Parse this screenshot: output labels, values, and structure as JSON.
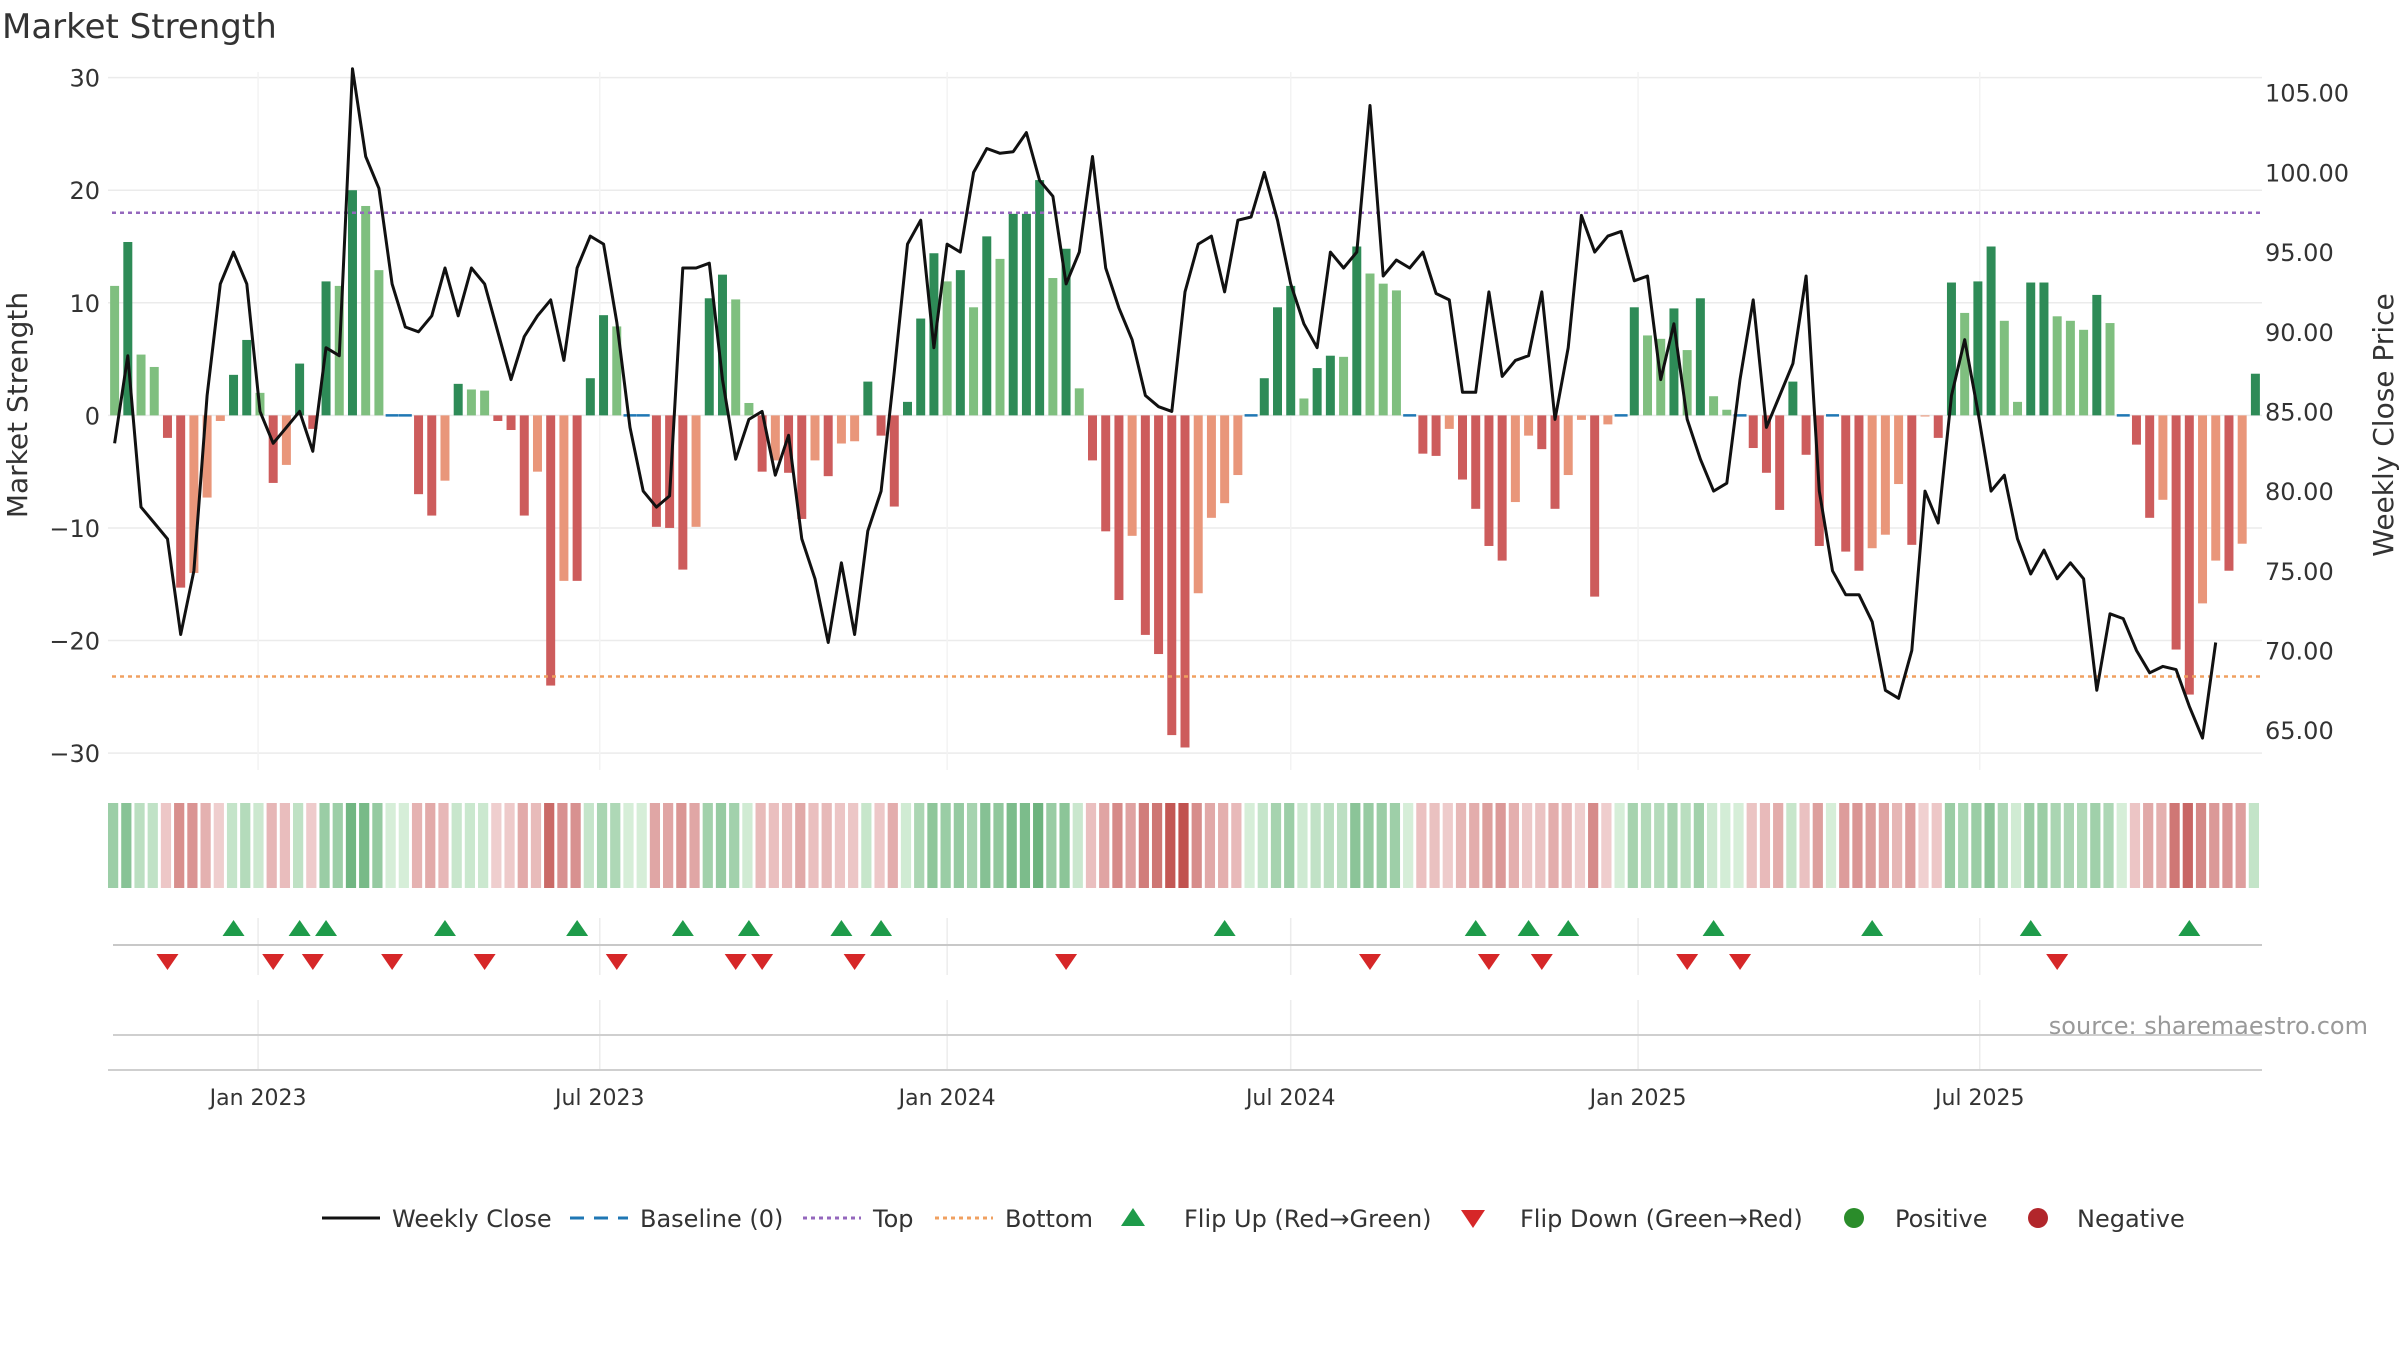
{
  "chart_data": {
    "type": "bar",
    "title": "Market Strength",
    "ylabel": "Market Strength",
    "y2label": "Weekly Close Price",
    "ylim": [
      -31.5,
      30.5
    ],
    "y2lim": [
      62.5,
      106.3
    ],
    "yticks": [
      30,
      20,
      10,
      0,
      -10,
      -20,
      -30
    ],
    "yticklabels": [
      "30",
      "20",
      "10",
      "0",
      "−10",
      "−20",
      "−30"
    ],
    "y2ticks": [
      105,
      100,
      95,
      90,
      85,
      80,
      75,
      70,
      65
    ],
    "y2ticklabels": [
      "105.00",
      "100.00",
      "95.00",
      "90.00",
      "85.00",
      "80.00",
      "75.00",
      "70.00",
      "65.00"
    ],
    "x_start": "2022-10-17",
    "x_step_days": 7,
    "xticks": [
      {
        "date": "2023-01-01",
        "label": "Jan 2023"
      },
      {
        "date": "2023-07-01",
        "label": "Jul 2023"
      },
      {
        "date": "2024-01-01",
        "label": "Jan 2024"
      },
      {
        "date": "2024-07-01",
        "label": "Jul 2024"
      },
      {
        "date": "2025-01-01",
        "label": "Jan 2025"
      },
      {
        "date": "2025-07-01",
        "label": "Jul 2025"
      }
    ],
    "top_line": 18,
    "bottom_line": -23.2,
    "grid": true,
    "series": [
      {
        "name": "Market Strength",
        "values": [
          11.5,
          15.4,
          5.4,
          4.3,
          -2,
          -15.3,
          -14,
          -7.3,
          -0.5,
          3.6,
          6.7,
          2,
          -6,
          -4.4,
          4.6,
          -1.2,
          11.9,
          11.5,
          20,
          18.6,
          12.9,
          0,
          0,
          -7,
          -8.9,
          -5.8,
          2.8,
          2.3,
          2.2,
          -0.5,
          -1.3,
          -8.9,
          -5,
          -24,
          -14.7,
          -14.7,
          3.3,
          8.9,
          7.9,
          0,
          0,
          -9.9,
          -10,
          -13.7,
          -9.9,
          10.4,
          12.5,
          10.3,
          1.1,
          -5,
          -4,
          -5.1,
          -9.2,
          -4,
          -5.4,
          -2.5,
          -2.3,
          3,
          -1.8,
          -8.1,
          1.2,
          8.6,
          14.4,
          11.9,
          12.9,
          9.6,
          15.9,
          13.9,
          17.9,
          17.9,
          20.9,
          12.2,
          14.8,
          2.4,
          -4,
          -10.3,
          -16.4,
          -10.7,
          -19.5,
          -21.2,
          -28.4,
          -29.5,
          -15.8,
          -9.1,
          -7.8,
          -5.3,
          0,
          3.3,
          9.6,
          11.5,
          1.5,
          4.2,
          5.3,
          5.2,
          15,
          12.6,
          11.7,
          11.1,
          0,
          -3.4,
          -3.6,
          -1.2,
          -5.7,
          -8.3,
          -11.6,
          -12.9,
          -7.7,
          -1.8,
          -3,
          -8.3,
          -5.3,
          -0.4,
          -16.1,
          -0.8,
          0,
          9.6,
          7.1,
          6.8,
          9.5,
          5.8,
          10.4,
          1.7,
          0.5,
          0,
          -2.9,
          -5.1,
          -8.4,
          3,
          -3.5,
          -11.6,
          0,
          -12.1,
          -13.8,
          -11.8,
          -10.6,
          -6.1,
          -11.5,
          -0.1,
          -2,
          11.8,
          9.1,
          11.9,
          15,
          8.4,
          1.2,
          11.8,
          11.8,
          8.8,
          8.4,
          7.6,
          10.7,
          8.2,
          0,
          -2.6,
          -9.1,
          -7.5,
          -20.8,
          -24.8,
          -16.7,
          -12.9,
          -13.8,
          -11.4,
          3.7
        ]
      },
      {
        "name": "Weekly Close",
        "values": [
          83,
          88.5,
          79,
          78,
          77,
          71,
          75,
          86,
          93,
          95,
          93,
          85,
          83,
          84,
          85,
          82.5,
          89,
          88.5,
          106.5,
          101,
          99,
          93,
          90.3,
          90,
          91,
          94,
          91,
          94,
          93,
          90,
          87,
          89.7,
          91,
          92,
          88.2,
          94,
          96,
          95.5,
          90.6,
          84,
          80,
          79,
          79.7,
          94,
          94,
          94.3,
          87,
          82,
          84.5,
          85,
          81,
          83.5,
          77,
          74.5,
          70.5,
          75.5,
          71,
          77.5,
          80,
          87.5,
          95.5,
          97,
          89,
          95.5,
          95,
          100,
          101.5,
          101.2,
          101.3,
          102.5,
          99.5,
          98.5,
          93,
          95,
          101,
          94,
          91.5,
          89.5,
          86,
          85.3,
          85,
          92.5,
          95.5,
          96,
          92.5,
          97,
          97.2,
          100,
          97,
          93,
          90.5,
          89,
          95,
          94,
          95,
          104.2,
          93.5,
          94.5,
          94,
          95,
          92.4,
          92,
          86.2,
          86.2,
          92.5,
          87.2,
          88.2,
          88.5,
          92.5,
          84.5,
          89,
          97.3,
          95,
          96,
          96.3,
          93.2,
          93.5,
          87,
          90.5,
          84.5,
          82,
          80,
          80.5,
          87,
          92,
          84,
          86,
          88,
          93.5,
          80,
          75,
          73.5,
          73.5,
          71.8,
          67.5,
          67,
          70,
          80,
          78,
          86,
          89.5,
          85,
          80,
          81,
          77,
          74.8,
          76.3,
          74.5,
          75.5,
          74.5,
          67.5,
          72.3,
          72,
          70,
          68.6,
          69,
          68.8,
          66.5,
          64.5,
          70.5
        ]
      }
    ],
    "flip_up_weeks": [
      9,
      14,
      16,
      25,
      35,
      43,
      48,
      55,
      58,
      84,
      103,
      107,
      110,
      121,
      133,
      145,
      157
    ],
    "flip_down_weeks": [
      4,
      12,
      15,
      21,
      28,
      38,
      47,
      49,
      56,
      72,
      95,
      104,
      108,
      119,
      123,
      147
    ],
    "legend": [
      {
        "label": "Weekly Close",
        "kind": "line",
        "color": "#111111"
      },
      {
        "label": "Baseline (0)",
        "kind": "dash",
        "color": "#1f77b4"
      },
      {
        "label": "Top",
        "kind": "dot",
        "color": "#9467bd"
      },
      {
        "label": "Bottom",
        "kind": "dot",
        "color": "#f0a060"
      },
      {
        "label": "Flip Up (Red→Green)",
        "kind": "tri-up",
        "color": "#1e9b4a"
      },
      {
        "label": "Flip Down (Green→Red)",
        "kind": "tri-down",
        "color": "#d62728"
      },
      {
        "label": "Positive",
        "kind": "circle",
        "color": "#2a8c2a"
      },
      {
        "label": "Negative",
        "kind": "circle",
        "color": "#b2262b"
      }
    ],
    "legend_position": "bottom",
    "colors": {
      "pos_strong": "#2e8b57",
      "pos_weak": "#7fbf7f",
      "neg_strong": "#cd5c5c",
      "neg_weak": "#e9967a",
      "top": "#9467bd",
      "bottom": "#f0a060",
      "baseline": "#1f77b4",
      "close": "#111111"
    }
  },
  "source_note": "source: sharemaestro.com"
}
